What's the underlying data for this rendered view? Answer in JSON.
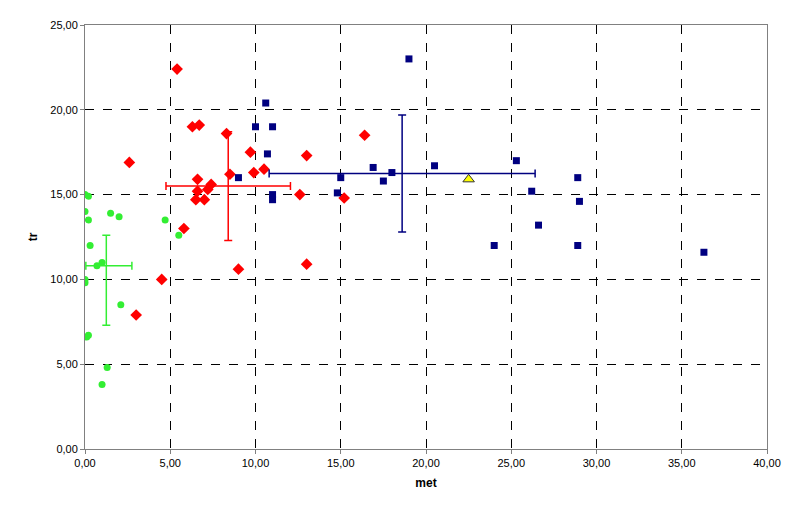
{
  "chart_data": {
    "type": "scatter",
    "x_label": "met",
    "y_label": "tr",
    "xlim": [
      0,
      40
    ],
    "ylim": [
      0,
      25
    ],
    "xticks": [
      {
        "value": 0,
        "label": "0,00"
      },
      {
        "value": 5,
        "label": "5,00"
      },
      {
        "value": 10,
        "label": "10,00"
      },
      {
        "value": 15,
        "label": "15,00"
      },
      {
        "value": 20,
        "label": "20,00"
      },
      {
        "value": 25,
        "label": "25,00"
      },
      {
        "value": 30,
        "label": "30,00"
      },
      {
        "value": 35,
        "label": "35,00"
      },
      {
        "value": 40,
        "label": "40,00"
      }
    ],
    "yticks": [
      {
        "value": 0,
        "label": "0,00"
      },
      {
        "value": 5,
        "label": "5,00"
      },
      {
        "value": 10,
        "label": "10,00"
      },
      {
        "value": 15,
        "label": "15,00"
      },
      {
        "value": 20,
        "label": "20,00"
      },
      {
        "value": 25,
        "label": "25,00"
      }
    ],
    "grid": true,
    "series": [
      {
        "color": "#33ee33",
        "marker": "circle",
        "x": [
          0.0,
          0.2,
          0.0,
          0.2,
          0.3,
          0.0,
          0.0,
          0.7,
          1.0,
          1.5,
          2.0,
          2.1,
          0.1,
          0.2,
          1.3,
          1.0,
          4.7,
          5.5
        ],
        "y": [
          15.0,
          14.9,
          14.0,
          13.5,
          12.0,
          10.0,
          9.8,
          10.8,
          11.0,
          13.9,
          13.7,
          8.5,
          6.6,
          6.7,
          4.8,
          3.8,
          13.5,
          12.6
        ],
        "error_bar": {
          "x": 1.25,
          "y": 10.8,
          "x_minus": 1.2,
          "x_plus": 1.5,
          "y_minus": 3.5,
          "y_plus": 1.8
        }
      },
      {
        "color": "#ff0000",
        "marker": "diamond",
        "x": [
          5.4,
          2.6,
          3.0,
          4.5,
          5.8,
          6.3,
          6.7,
          6.5,
          6.6,
          6.6,
          7.0,
          7.2,
          7.4,
          8.3,
          8.5,
          9.0,
          9.7,
          9.9,
          10.5,
          12.6,
          13.0,
          13.0,
          15.2,
          16.4
        ],
        "y": [
          22.4,
          16.9,
          7.9,
          10.0,
          13.0,
          19.0,
          19.1,
          14.7,
          15.2,
          15.9,
          14.7,
          15.3,
          15.6,
          18.6,
          16.2,
          10.6,
          17.5,
          16.3,
          16.5,
          15.0,
          17.3,
          10.9,
          14.8,
          18.5
        ],
        "error_bar": {
          "x": 8.4,
          "y": 15.5,
          "x_minus": 3.65,
          "x_plus": 3.65,
          "y_minus": 3.2,
          "y_plus": 3.2
        }
      },
      {
        "color": "#000080",
        "marker": "square",
        "x": [
          9.0,
          10.0,
          10.6,
          10.7,
          11.0,
          11.0,
          11.0,
          14.8,
          15.0,
          16.9,
          17.5,
          18.0,
          19.0,
          20.5,
          24.0,
          25.3,
          26.2,
          26.6,
          28.9,
          28.9,
          29.0,
          36.3
        ],
        "y": [
          16.0,
          19.0,
          20.4,
          17.4,
          19.0,
          15.0,
          14.7,
          15.1,
          16.0,
          16.6,
          15.8,
          16.3,
          23.0,
          16.7,
          12.0,
          17.0,
          15.2,
          13.2,
          16.0,
          12.0,
          14.6,
          11.6
        ],
        "error_bar": {
          "x": 18.6,
          "y": 16.25,
          "x_minus": 7.8,
          "x_plus": 7.8,
          "y_minus": 3.45,
          "y_plus": 3.45
        }
      },
      {
        "color": "#ffff00",
        "marker": "triangle",
        "x": [
          22.5
        ],
        "y": [
          15.9
        ]
      }
    ]
  }
}
